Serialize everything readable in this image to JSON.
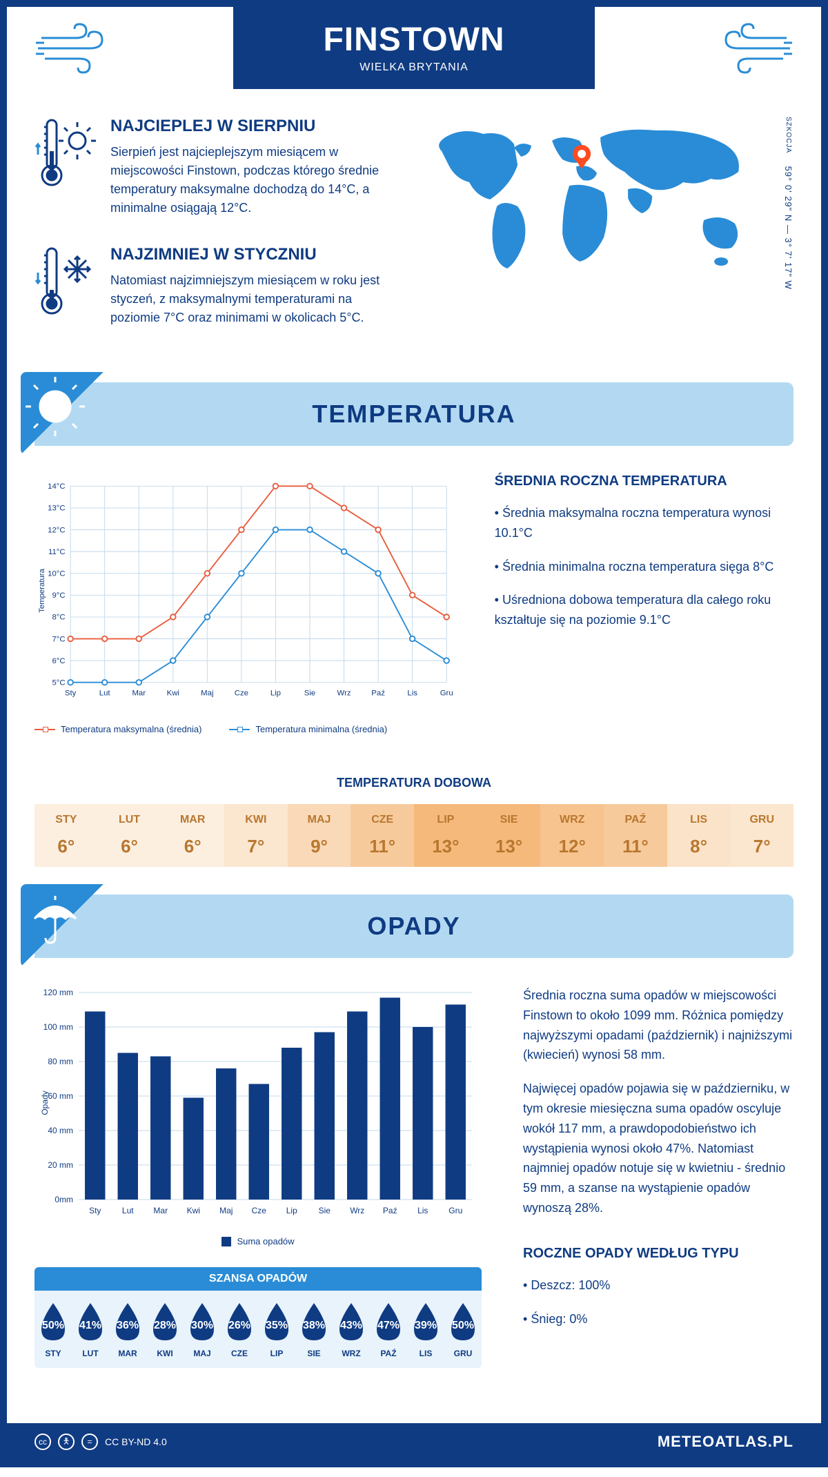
{
  "header": {
    "city": "FINSTOWN",
    "country": "WIELKA BRYTANIA"
  },
  "coords": {
    "text": "59° 0' 29\" N — 3° 7' 17\" W",
    "region": "SZKOCJA"
  },
  "facts": {
    "warm": {
      "title": "NAJCIEPLEJ W SIERPNIU",
      "text": "Sierpień jest najcieplejszym miesiącem w miejscowości Finstown, podczas którego średnie temperatury maksymalne dochodzą do 14°C, a minimalne osiągają 12°C."
    },
    "cold": {
      "title": "NAJZIMNIEJ W STYCZNIU",
      "text": "Natomiast najzimniejszym miesiącem w roku jest styczeń, z maksymalnymi temperaturami na poziomie 7°C oraz minimami w okolicach 5°C."
    }
  },
  "sections": {
    "temperature_title": "TEMPERATURA",
    "precipitation_title": "OPADY"
  },
  "months": [
    "Sty",
    "Lut",
    "Mar",
    "Kwi",
    "Maj",
    "Cze",
    "Lip",
    "Sie",
    "Wrz",
    "Paź",
    "Lis",
    "Gru"
  ],
  "months_upper": [
    "STY",
    "LUT",
    "MAR",
    "KWI",
    "MAJ",
    "CZE",
    "LIP",
    "SIE",
    "WRZ",
    "PAŹ",
    "LIS",
    "GRU"
  ],
  "temp_chart": {
    "type": "line",
    "ylabel": "Temperatura",
    "ylim": [
      5,
      14
    ],
    "ytick_step": 1,
    "ytick_labels": [
      "5°C",
      "6°C",
      "7°C",
      "8°C",
      "9°C",
      "10°C",
      "11°C",
      "12°C",
      "13°C",
      "14°C"
    ],
    "grid_color": "#c0d8ec",
    "background_color": "#ffffff",
    "series": {
      "max": {
        "label": "Temperatura maksymalna (średnia)",
        "color": "#e85d3d",
        "values": [
          7,
          7,
          7,
          8,
          10,
          12,
          14,
          14,
          13,
          12,
          9,
          8
        ]
      },
      "min": {
        "label": "Temperatura minimalna (średnia)",
        "color": "#2a8cd6",
        "values": [
          5,
          5,
          5,
          6,
          8,
          10,
          12,
          12,
          11,
          10,
          7,
          6
        ]
      }
    },
    "marker": "circle",
    "line_width": 2
  },
  "temp_summary": {
    "title": "ŚREDNIA ROCZNA TEMPERATURA",
    "items": [
      "Średnia maksymalna roczna temperatura wynosi 10.1°C",
      "Średnia minimalna roczna temperatura sięga 8°C",
      "Uśredniona dobowa temperatura dla całego roku kształtuje się na poziomie 9.1°C"
    ]
  },
  "daily_temp": {
    "title": "TEMPERATURA DOBOWA",
    "values": [
      "6°",
      "6°",
      "6°",
      "7°",
      "9°",
      "11°",
      "13°",
      "13°",
      "12°",
      "11°",
      "8°",
      "7°"
    ],
    "colors": [
      "#fcefe0",
      "#fcefe0",
      "#fcefe0",
      "#fbe6cf",
      "#f9d9b7",
      "#f7ca9b",
      "#f5b97b",
      "#f5b97b",
      "#f7c48f",
      "#f7ca9b",
      "#fbe3c9",
      "#fbe6cf"
    ],
    "text_color": "#b8772f"
  },
  "precip_chart": {
    "type": "bar",
    "ylabel": "Opady",
    "ylim": [
      0,
      120
    ],
    "ytick_step": 20,
    "ytick_labels": [
      "0mm",
      "20 mm",
      "40 mm",
      "60 mm",
      "80 mm",
      "100 mm",
      "120 mm"
    ],
    "bar_color": "#0f3b82",
    "grid_color": "#c0d8ec",
    "values": [
      109,
      85,
      83,
      59,
      76,
      67,
      88,
      97,
      109,
      117,
      100,
      113
    ],
    "legend_label": "Suma opadów"
  },
  "precip_text": {
    "p1": "Średnia roczna suma opadów w miejscowości Finstown to około 1099 mm. Różnica pomiędzy najwyższymi opadami (październik) i najniższymi (kwiecień) wynosi 58 mm.",
    "p2": "Najwięcej opadów pojawia się w październiku, w tym okresie miesięczna suma opadów oscyluje wokół 117 mm, a prawdopodobieństwo ich wystąpienia wynosi około 47%. Natomiast najmniej opadów notuje się w kwietniu - średnio 59 mm, a szanse na wystąpienie opadów wynoszą 28%."
  },
  "rain_chance": {
    "title": "SZANSA OPADÓW",
    "values": [
      "50%",
      "41%",
      "36%",
      "28%",
      "30%",
      "26%",
      "35%",
      "38%",
      "43%",
      "47%",
      "39%",
      "50%"
    ],
    "drop_color": "#0f3b82"
  },
  "precip_by_type": {
    "title": "ROCZNE OPADY WEDŁUG TYPU",
    "items": [
      "Deszcz: 100%",
      "Śnieg: 0%"
    ]
  },
  "footer": {
    "license": "CC BY-ND 4.0",
    "site": "METEOATLAS.PL"
  },
  "colors": {
    "primary": "#0f3b82",
    "secondary": "#2a8cd6",
    "light_blue": "#b3d9f2",
    "orange": "#e85d3d"
  }
}
